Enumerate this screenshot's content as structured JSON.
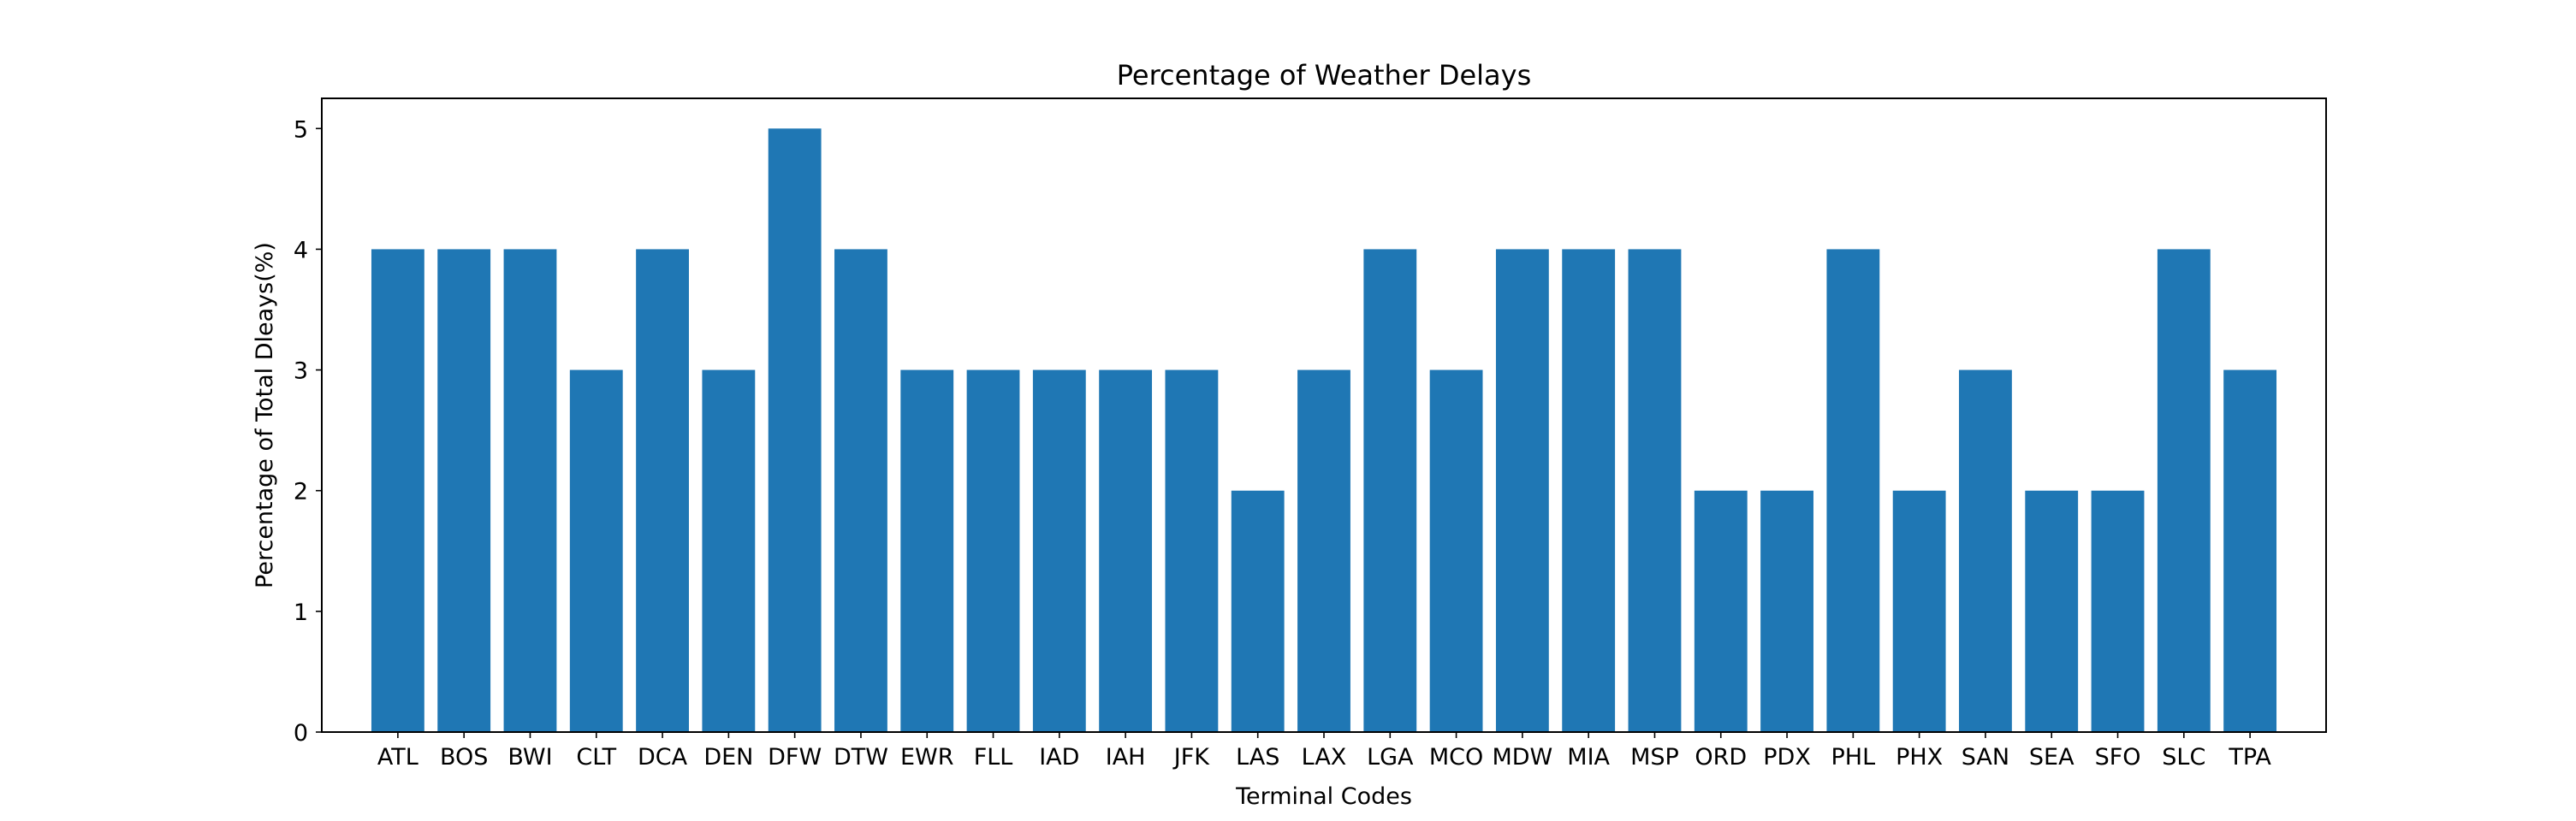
{
  "chart_data": {
    "type": "bar",
    "title": "Percentage of Weather Delays",
    "xlabel": "Terminal Codes",
    "ylabel": "Percentage of Total Dleays(%)",
    "ylim": [
      0,
      5.25
    ],
    "yticks": [
      0,
      1,
      2,
      3,
      4,
      5
    ],
    "grid": false,
    "color": "#1f77b4",
    "categories": [
      "ATL",
      "BOS",
      "BWI",
      "CLT",
      "DCA",
      "DEN",
      "DFW",
      "DTW",
      "EWR",
      "FLL",
      "IAD",
      "IAH",
      "JFK",
      "LAS",
      "LAX",
      "LGA",
      "MCO",
      "MDW",
      "MIA",
      "MSP",
      "ORD",
      "PDX",
      "PHL",
      "PHX",
      "SAN",
      "SEA",
      "SFO",
      "SLC",
      "TPA"
    ],
    "values": [
      4,
      4,
      4,
      3,
      4,
      3,
      5,
      4,
      3,
      3,
      3,
      3,
      3,
      2,
      3,
      4,
      3,
      4,
      4,
      4,
      2,
      2,
      4,
      2,
      3,
      2,
      2,
      4,
      3
    ]
  }
}
